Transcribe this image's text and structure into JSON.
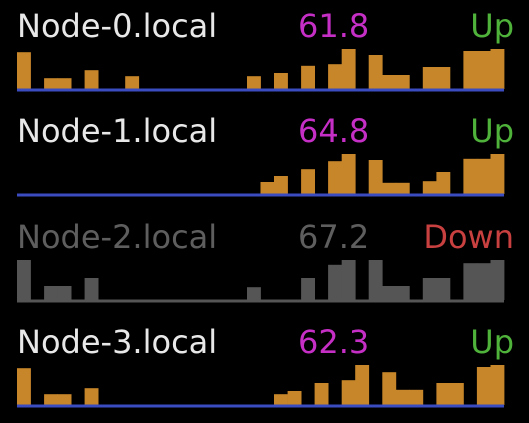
{
  "colors": {
    "background": "#000000",
    "name_up": "#e8e8e8",
    "value_up": "#c62fc6",
    "status_up": "#4fb23a",
    "bar_up": "#c8862a",
    "baseline_up": "#3a4cbf",
    "name_down": "#5e5e5e",
    "value_down": "#5e5e5e",
    "status_down": "#c8403f",
    "bar_down": "#555555",
    "baseline_down": "#555555"
  },
  "nodes": [
    {
      "name": "Node-0.local",
      "value": "61.8",
      "status": "Up",
      "state": "up",
      "history": [
        0.92,
        0.0,
        0.27,
        0.27,
        0.0,
        0.47,
        0.0,
        0.0,
        0.32,
        0.0,
        0.0,
        0.0,
        0.0,
        0.0,
        0.0,
        0.0,
        0.0,
        0.32,
        0.0,
        0.4,
        0.0,
        0.58,
        0.0,
        0.62,
        1.0,
        0.0,
        0.85,
        0.35,
        0.35,
        0.0,
        0.55,
        0.55,
        0.0,
        0.95,
        0.95,
        1.0
      ]
    },
    {
      "name": "Node-1.local",
      "value": "64.8",
      "status": "Up",
      "state": "up",
      "history": [
        0.0,
        0.0,
        0.0,
        0.0,
        0.0,
        0.0,
        0.0,
        0.0,
        0.0,
        0.0,
        0.0,
        0.0,
        0.0,
        0.0,
        0.0,
        0.0,
        0.0,
        0.0,
        0.3,
        0.45,
        0.0,
        0.62,
        0.0,
        0.82,
        1.0,
        0.0,
        0.85,
        0.28,
        0.28,
        0.0,
        0.32,
        0.55,
        0.0,
        0.88,
        0.88,
        1.0
      ]
    },
    {
      "name": "Node-2.local",
      "value": "67.2",
      "status": "Down",
      "state": "down",
      "history": [
        1.0,
        0.0,
        0.35,
        0.35,
        0.0,
        0.55,
        0.0,
        0.0,
        0.0,
        0.0,
        0.0,
        0.0,
        0.0,
        0.0,
        0.0,
        0.0,
        0.0,
        0.32,
        0.0,
        0.0,
        0.0,
        0.55,
        0.0,
        0.88,
        1.0,
        0.0,
        1.0,
        0.35,
        0.35,
        0.0,
        0.55,
        0.55,
        0.0,
        0.92,
        0.92,
        1.0
      ]
    },
    {
      "name": "Node-3.local",
      "value": "62.3",
      "status": "Up",
      "state": "up",
      "history": [
        0.92,
        0.0,
        0.27,
        0.27,
        0.0,
        0.42,
        0.0,
        0.0,
        0.0,
        0.0,
        0.0,
        0.0,
        0.0,
        0.0,
        0.0,
        0.0,
        0.0,
        0.0,
        0.0,
        0.27,
        0.35,
        0.0,
        0.55,
        0.0,
        0.62,
        1.0,
        0.0,
        0.82,
        0.38,
        0.38,
        0.0,
        0.55,
        0.55,
        0.0,
        0.95,
        1.0
      ]
    }
  ]
}
